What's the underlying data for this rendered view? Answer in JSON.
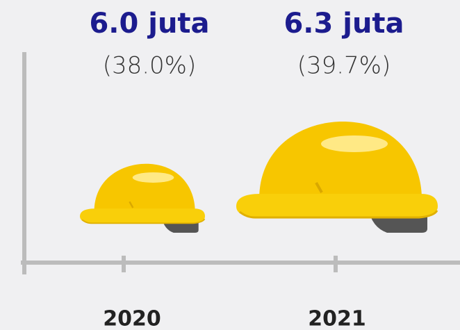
{
  "chart_data": {
    "type": "pictograph",
    "categories": [
      "2020",
      "2021"
    ],
    "values": [
      6.0,
      6.3
    ],
    "value_labels": [
      "6.0 juta",
      "6.3 juta"
    ],
    "shares": [
      38.0,
      39.7
    ],
    "share_labels": [
      "(38.0%)",
      "(39.7%)"
    ],
    "color": "#f7c600"
  }
}
